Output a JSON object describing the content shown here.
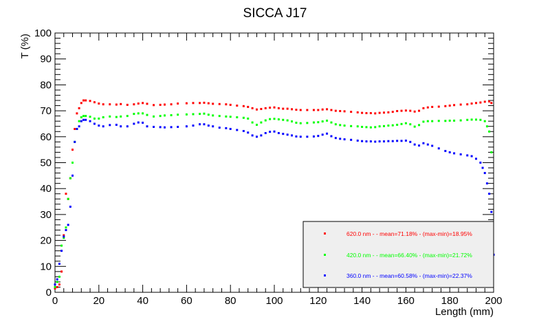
{
  "chart_data": {
    "type": "scatter",
    "title": "SICCA J17",
    "xlabel": "Length (mm)",
    "ylabel": "T (%)",
    "xlim": [
      0,
      200
    ],
    "ylim": [
      0,
      100
    ],
    "x_ticks": [
      0,
      20,
      40,
      60,
      80,
      100,
      120,
      140,
      160,
      180,
      200
    ],
    "y_ticks": [
      0,
      10,
      20,
      30,
      40,
      50,
      60,
      70,
      80,
      90,
      100
    ],
    "grid": false,
    "legend_position": "bottom-right",
    "series": [
      {
        "name": "620.0 nm -  - mean=71.18% - (max-min)=18.95%",
        "color": "#ff0000",
        "points": [
          [
            0,
            1.5
          ],
          [
            1,
            2
          ],
          [
            2,
            3
          ],
          [
            3,
            8
          ],
          [
            4,
            22
          ],
          [
            5,
            38
          ],
          [
            6,
            36
          ],
          [
            7,
            44
          ],
          [
            8,
            55
          ],
          [
            9,
            63
          ],
          [
            10,
            69
          ],
          [
            11,
            71
          ],
          [
            12,
            73
          ],
          [
            13,
            74
          ],
          [
            14,
            74
          ],
          [
            16,
            73.8
          ],
          [
            18,
            73.3
          ],
          [
            20,
            72.8
          ],
          [
            22,
            72.5
          ],
          [
            25,
            72.5
          ],
          [
            28,
            72.4
          ],
          [
            30,
            72.6
          ],
          [
            33,
            72.3
          ],
          [
            36,
            72.5
          ],
          [
            38,
            72.8
          ],
          [
            40,
            73
          ],
          [
            42,
            72.7
          ],
          [
            45,
            72.2
          ],
          [
            48,
            72.3
          ],
          [
            50,
            72.4
          ],
          [
            53,
            72.5
          ],
          [
            56,
            72.8
          ],
          [
            60,
            72.9
          ],
          [
            63,
            73
          ],
          [
            66,
            73
          ],
          [
            68,
            73.1
          ],
          [
            70,
            72.9
          ],
          [
            72,
            72.7
          ],
          [
            75,
            72.6
          ],
          [
            78,
            72.5
          ],
          [
            80,
            72.3
          ],
          [
            83,
            72
          ],
          [
            86,
            71.8
          ],
          [
            88,
            71.5
          ],
          [
            90,
            71
          ],
          [
            92,
            70.5
          ],
          [
            94,
            70.7
          ],
          [
            96,
            71
          ],
          [
            98,
            71.2
          ],
          [
            100,
            71.3
          ],
          [
            102,
            71
          ],
          [
            104,
            70.8
          ],
          [
            106,
            70.8
          ],
          [
            108,
            70.6
          ],
          [
            110,
            70.4
          ],
          [
            112,
            70.3
          ],
          [
            115,
            70.3
          ],
          [
            118,
            70.3
          ],
          [
            120,
            70.3
          ],
          [
            122,
            70.5
          ],
          [
            124,
            70.6
          ],
          [
            126,
            70.3
          ],
          [
            128,
            70
          ],
          [
            130,
            69.9
          ],
          [
            132,
            69.8
          ],
          [
            135,
            69.6
          ],
          [
            138,
            69.4
          ],
          [
            140,
            69.2
          ],
          [
            142,
            69.1
          ],
          [
            144,
            69.1
          ],
          [
            146,
            69
          ],
          [
            148,
            69.2
          ],
          [
            150,
            69.3
          ],
          [
            152,
            69.4
          ],
          [
            154,
            69.6
          ],
          [
            156,
            69.9
          ],
          [
            158,
            70
          ],
          [
            160,
            70.1
          ],
          [
            162,
            70
          ],
          [
            164,
            69.7
          ],
          [
            166,
            70
          ],
          [
            168,
            71
          ],
          [
            170,
            71.3
          ],
          [
            172,
            71.5
          ],
          [
            175,
            71.6
          ],
          [
            178,
            71.8
          ],
          [
            180,
            72
          ],
          [
            182,
            72.2
          ],
          [
            185,
            72.4
          ],
          [
            188,
            72.5
          ],
          [
            190,
            72.8
          ],
          [
            192,
            73
          ],
          [
            194,
            73.2
          ],
          [
            196,
            73.5
          ],
          [
            198,
            73.6
          ],
          [
            199,
            73
          ]
        ]
      },
      {
        "name": "420.0 nm -  - mean=66.40% - (max-min)=21.72%",
        "color": "#00ff00",
        "points": [
          [
            0,
            2
          ],
          [
            1,
            4
          ],
          [
            2,
            6
          ],
          [
            3,
            18
          ],
          [
            4,
            21
          ],
          [
            5,
            25
          ],
          [
            6,
            36
          ],
          [
            7,
            44
          ],
          [
            8,
            50
          ],
          [
            9,
            58
          ],
          [
            10,
            63
          ],
          [
            11,
            66
          ],
          [
            12,
            67.5
          ],
          [
            13,
            68
          ],
          [
            14,
            68
          ],
          [
            16,
            67.7
          ],
          [
            18,
            67
          ],
          [
            20,
            67
          ],
          [
            22,
            67.5
          ],
          [
            25,
            67.8
          ],
          [
            28,
            67.6
          ],
          [
            30,
            67.8
          ],
          [
            33,
            68
          ],
          [
            36,
            68.8
          ],
          [
            38,
            69
          ],
          [
            40,
            69
          ],
          [
            42,
            68.4
          ],
          [
            45,
            67.8
          ],
          [
            48,
            68
          ],
          [
            50,
            68.2
          ],
          [
            53,
            68.3
          ],
          [
            56,
            68.5
          ],
          [
            60,
            68.6
          ],
          [
            63,
            68.7
          ],
          [
            66,
            68.8
          ],
          [
            68,
            68.9
          ],
          [
            70,
            68.5
          ],
          [
            72,
            68.2
          ],
          [
            75,
            68
          ],
          [
            78,
            67.8
          ],
          [
            80,
            67.7
          ],
          [
            83,
            67.5
          ],
          [
            86,
            67.3
          ],
          [
            88,
            67
          ],
          [
            90,
            65.5
          ],
          [
            92,
            64.6
          ],
          [
            94,
            65.5
          ],
          [
            96,
            66.3
          ],
          [
            98,
            66.8
          ],
          [
            100,
            66.9
          ],
          [
            102,
            66.7
          ],
          [
            104,
            66.5
          ],
          [
            106,
            66.3
          ],
          [
            108,
            65.9
          ],
          [
            110,
            65.4
          ],
          [
            112,
            65.2
          ],
          [
            115,
            65.3
          ],
          [
            118,
            65.5
          ],
          [
            120,
            65.6
          ],
          [
            122,
            65.9
          ],
          [
            124,
            66.2
          ],
          [
            126,
            65.5
          ],
          [
            128,
            64.8
          ],
          [
            130,
            64.5
          ],
          [
            132,
            64.3
          ],
          [
            135,
            64.1
          ],
          [
            138,
            64
          ],
          [
            140,
            63.8
          ],
          [
            142,
            63.7
          ],
          [
            144,
            63.6
          ],
          [
            146,
            63.7
          ],
          [
            148,
            64
          ],
          [
            150,
            64.1
          ],
          [
            152,
            64.3
          ],
          [
            154,
            64.4
          ],
          [
            156,
            64.6
          ],
          [
            158,
            64.9
          ],
          [
            160,
            65.2
          ],
          [
            162,
            64.8
          ],
          [
            164,
            63.9
          ],
          [
            166,
            64.5
          ],
          [
            168,
            65.8
          ],
          [
            170,
            66
          ],
          [
            172,
            66
          ],
          [
            175,
            66.1
          ],
          [
            178,
            66.1
          ],
          [
            180,
            66.2
          ],
          [
            182,
            66.2
          ],
          [
            185,
            66.3
          ],
          [
            188,
            66.5
          ],
          [
            190,
            66.6
          ],
          [
            192,
            66.6
          ],
          [
            194,
            66.5
          ],
          [
            196,
            66
          ],
          [
            197,
            64
          ],
          [
            198,
            62
          ],
          [
            199,
            54
          ]
        ]
      },
      {
        "name": "360.0 nm -  - mean=60.58% - (max-min)=22.37%",
        "color": "#0000ff",
        "points": [
          [
            0,
            3
          ],
          [
            1,
            5
          ],
          [
            2,
            11
          ],
          [
            3,
            16
          ],
          [
            4,
            21.5
          ],
          [
            5,
            24
          ],
          [
            6,
            26
          ],
          [
            7,
            33
          ],
          [
            8,
            45
          ],
          [
            9,
            58
          ],
          [
            10,
            63
          ],
          [
            11,
            64
          ],
          [
            12,
            66
          ],
          [
            13,
            66.5
          ],
          [
            14,
            66.5
          ],
          [
            16,
            66
          ],
          [
            18,
            65
          ],
          [
            20,
            64.3
          ],
          [
            22,
            64
          ],
          [
            25,
            64.5
          ],
          [
            28,
            64.6
          ],
          [
            30,
            64
          ],
          [
            33,
            64
          ],
          [
            36,
            65
          ],
          [
            38,
            65.5
          ],
          [
            40,
            65.4
          ],
          [
            42,
            64
          ],
          [
            45,
            63.8
          ],
          [
            48,
            63.7
          ],
          [
            50,
            63.6
          ],
          [
            53,
            63.7
          ],
          [
            56,
            63.8
          ],
          [
            60,
            64
          ],
          [
            63,
            64.3
          ],
          [
            66,
            64.8
          ],
          [
            68,
            64.8
          ],
          [
            70,
            64.3
          ],
          [
            72,
            64
          ],
          [
            75,
            63.5
          ],
          [
            78,
            63.3
          ],
          [
            80,
            63
          ],
          [
            83,
            62.6
          ],
          [
            86,
            62.2
          ],
          [
            88,
            61.6
          ],
          [
            90,
            60.5
          ],
          [
            92,
            60
          ],
          [
            94,
            60.5
          ],
          [
            96,
            61.4
          ],
          [
            98,
            61.9
          ],
          [
            100,
            62
          ],
          [
            102,
            61.4
          ],
          [
            104,
            61.1
          ],
          [
            106,
            60.8
          ],
          [
            108,
            60.5
          ],
          [
            110,
            60.1
          ],
          [
            112,
            60
          ],
          [
            115,
            60
          ],
          [
            118,
            60.1
          ],
          [
            120,
            60.3
          ],
          [
            122,
            60.8
          ],
          [
            124,
            61.2
          ],
          [
            126,
            60.2
          ],
          [
            128,
            59.5
          ],
          [
            130,
            59.2
          ],
          [
            132,
            59
          ],
          [
            135,
            58.8
          ],
          [
            138,
            58.5
          ],
          [
            140,
            58.3
          ],
          [
            142,
            58.2
          ],
          [
            144,
            58.2
          ],
          [
            146,
            58.1
          ],
          [
            148,
            58.2
          ],
          [
            150,
            58.2
          ],
          [
            152,
            58.3
          ],
          [
            154,
            58.3
          ],
          [
            156,
            58.4
          ],
          [
            158,
            58.4
          ],
          [
            160,
            58.5
          ],
          [
            162,
            58
          ],
          [
            164,
            57
          ],
          [
            166,
            56.6
          ],
          [
            168,
            57.5
          ],
          [
            170,
            57
          ],
          [
            172,
            56.5
          ],
          [
            175,
            55.5
          ],
          [
            178,
            54.5
          ],
          [
            180,
            54
          ],
          [
            182,
            53.6
          ],
          [
            185,
            53.2
          ],
          [
            188,
            52.8
          ],
          [
            190,
            52.5
          ],
          [
            192,
            51.5
          ],
          [
            194,
            50
          ],
          [
            195,
            48
          ],
          [
            196,
            46
          ],
          [
            197,
            42
          ],
          [
            198,
            38
          ],
          [
            199,
            31
          ],
          [
            200,
            14.5
          ]
        ]
      }
    ]
  }
}
